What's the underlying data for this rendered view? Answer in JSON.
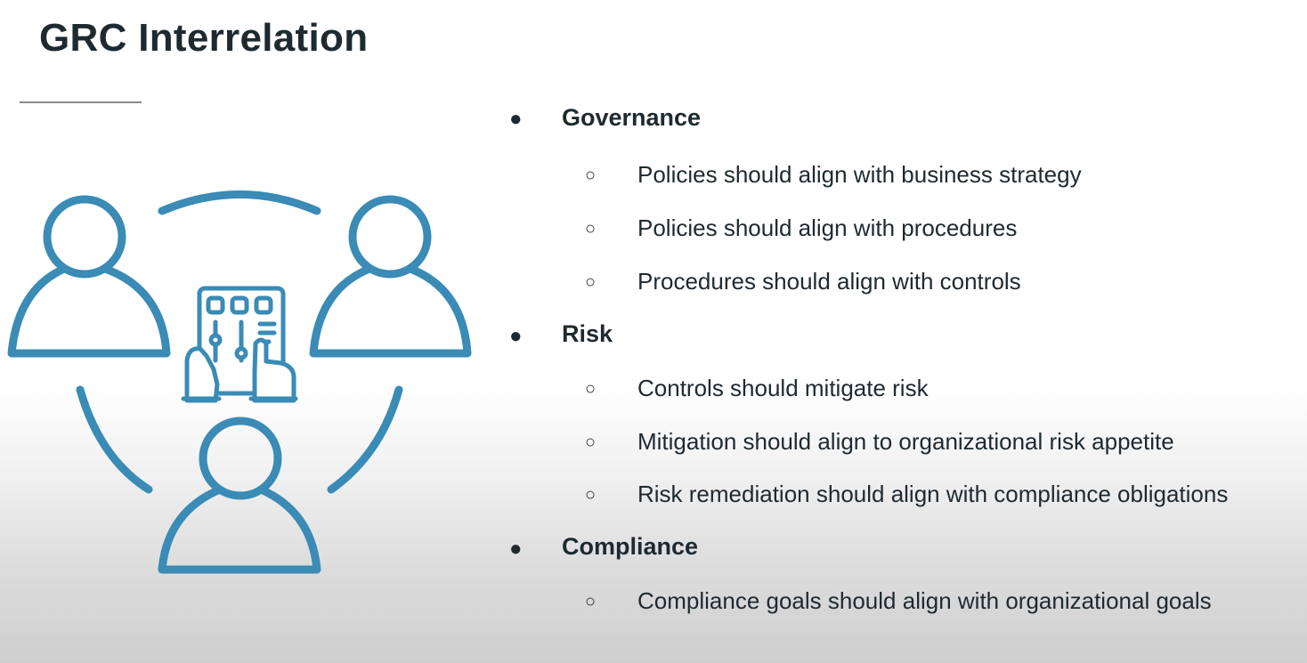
{
  "slide": {
    "title": "GRC Interrelation"
  },
  "icon": {
    "name": "team-control-panel-icon",
    "color": "#3a8bb5"
  },
  "sections": {
    "governance": {
      "bullet": "●",
      "heading": "Governance",
      "items": [
        "Policies should align with business strategy",
        "Policies should align with procedures",
        "Procedures should align with controls"
      ]
    },
    "risk": {
      "bullet": "●",
      "heading": "Risk",
      "items": [
        "Controls should mitigate risk",
        "Mitigation should align to organizational risk appetite",
        "Risk remediation should align with compliance obligations"
      ]
    },
    "compliance": {
      "bullet": "●",
      "heading": "Compliance",
      "items": [
        "Compliance goals should align with organizational goals"
      ]
    }
  },
  "sub_bullet": "○"
}
